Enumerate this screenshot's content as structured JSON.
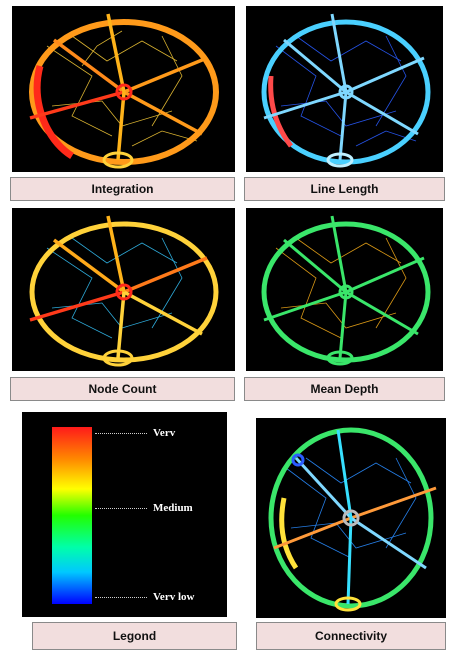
{
  "panels": {
    "integration": {
      "caption": "Integration"
    },
    "line_length": {
      "caption": "Line Length"
    },
    "node_count": {
      "caption": "Node Count"
    },
    "mean_depth": {
      "caption": "Mean Depth"
    },
    "connectivity": {
      "caption": "Connectivity"
    }
  },
  "legend": {
    "caption": "Legond",
    "levels": {
      "high": "Verv",
      "medium": "Medium",
      "low": "Verv low"
    },
    "gradient_colors": [
      "#ff1a1a",
      "#ff8800",
      "#ffff00",
      "#22ff00",
      "#00ffaa",
      "#00c8ff",
      "#0000ff"
    ]
  },
  "colors": {
    "very_high": "#ff2a1a",
    "high": "#ff8a1a",
    "medium_high": "#ffe23a",
    "medium": "#3ae66a",
    "medium_low": "#37e0ff",
    "low": "#2a5cff"
  }
}
